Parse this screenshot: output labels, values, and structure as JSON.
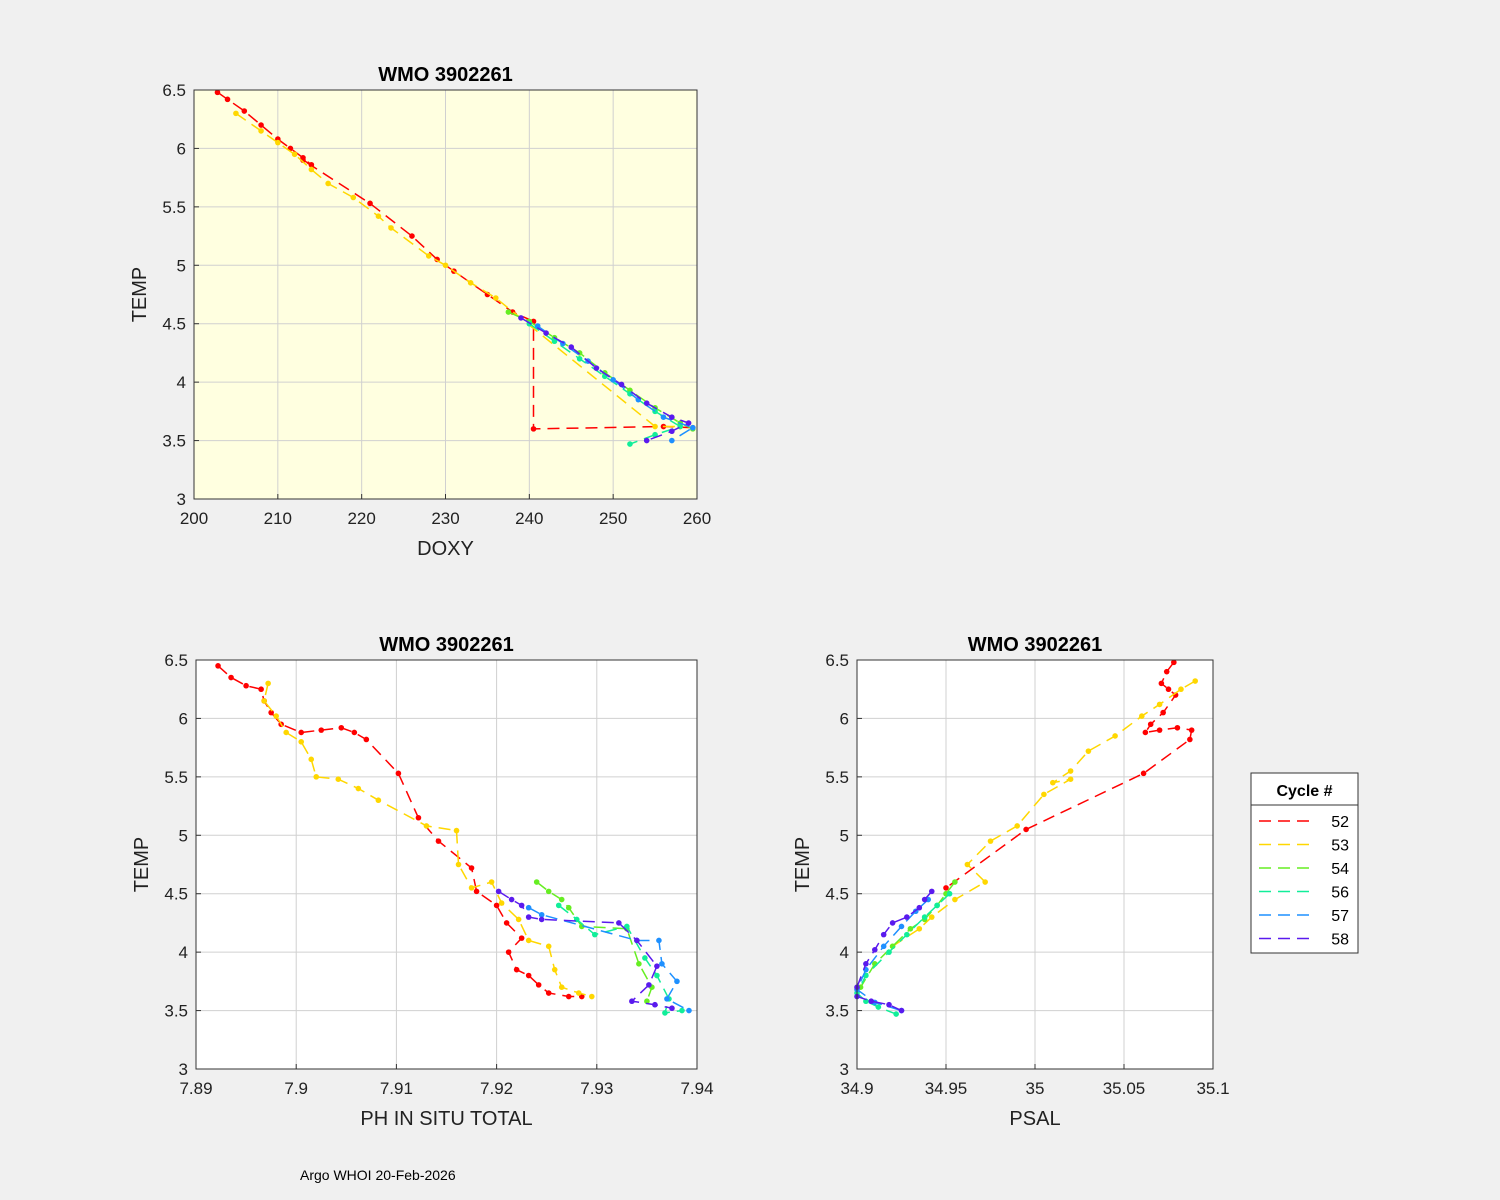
{
  "footer": "Argo WHOI 20-Feb-2026",
  "legend": {
    "title": "Cycle #",
    "entries": [
      {
        "label": "52",
        "color": "#ff0000"
      },
      {
        "label": "53",
        "color": "#ffd700"
      },
      {
        "label": "54",
        "color": "#66ee22"
      },
      {
        "label": "56",
        "color": "#11ee99"
      },
      {
        "label": "57",
        "color": "#1e90ff"
      },
      {
        "label": "58",
        "color": "#5a1aee"
      }
    ]
  },
  "chart_data": [
    {
      "id": "doxy",
      "type": "scatter",
      "title": "WMO 3902261",
      "xlabel": "DOXY",
      "ylabel": "TEMP",
      "xlim": [
        200,
        260
      ],
      "ylim": [
        3,
        6.5
      ],
      "xticks": [
        "200",
        "210",
        "220",
        "230",
        "240",
        "250",
        "260"
      ],
      "yticks": [
        "3",
        "3.5",
        "4",
        "4.5",
        "5",
        "5.5",
        "6",
        "6.5"
      ],
      "background": "#ffffe0",
      "series": [
        {
          "name": "52",
          "color": "#ff0000",
          "points": [
            [
              202.8,
              6.48
            ],
            [
              204,
              6.42
            ],
            [
              206,
              6.32
            ],
            [
              208,
              6.2
            ],
            [
              210,
              6.08
            ],
            [
              211.5,
              6.0
            ],
            [
              213,
              5.92
            ],
            [
              214,
              5.86
            ],
            [
              213,
              5.9
            ],
            [
              221,
              5.53
            ],
            [
              226,
              5.25
            ],
            [
              229,
              5.05
            ],
            [
              231,
              4.95
            ],
            [
              235,
              4.75
            ],
            [
              238,
              4.6
            ],
            [
              240.5,
              4.52
            ],
            [
              240.5,
              3.6
            ],
            [
              256,
              3.62
            ],
            [
              259.5,
              3.61
            ]
          ]
        },
        {
          "name": "53",
          "color": "#ffd700",
          "points": [
            [
              205,
              6.3
            ],
            [
              208,
              6.15
            ],
            [
              210,
              6.05
            ],
            [
              212,
              5.95
            ],
            [
              214,
              5.82
            ],
            [
              216,
              5.7
            ],
            [
              219,
              5.58
            ],
            [
              222,
              5.42
            ],
            [
              223.5,
              5.32
            ],
            [
              228,
              5.08
            ],
            [
              230,
              5.0
            ],
            [
              233,
              4.85
            ],
            [
              236,
              4.72
            ],
            [
              255,
              3.62
            ],
            [
              258,
              3.62
            ]
          ]
        },
        {
          "name": "54",
          "color": "#66ee22",
          "points": [
            [
              237.5,
              4.6
            ],
            [
              240,
              4.52
            ],
            [
              243,
              4.38
            ],
            [
              246,
              4.25
            ],
            [
              249,
              4.08
            ],
            [
              252,
              3.93
            ],
            [
              255,
              3.78
            ],
            [
              258,
              3.65
            ],
            [
              259.5,
              3.6
            ]
          ]
        },
        {
          "name": "56",
          "color": "#11ee99",
          "points": [
            [
              240,
              4.5
            ],
            [
              243,
              4.35
            ],
            [
              246,
              4.2
            ],
            [
              249,
              4.05
            ],
            [
              252,
              3.9
            ],
            [
              255,
              3.75
            ],
            [
              258,
              3.62
            ],
            [
              255,
              3.55
            ],
            [
              252,
              3.47
            ]
          ]
        },
        {
          "name": "57",
          "color": "#1e90ff",
          "points": [
            [
              241,
              4.48
            ],
            [
              244,
              4.33
            ],
            [
              247,
              4.18
            ],
            [
              250,
              4.02
            ],
            [
              253,
              3.85
            ],
            [
              256,
              3.7
            ],
            [
              259.5,
              3.61
            ],
            [
              257,
              3.5
            ]
          ]
        },
        {
          "name": "58",
          "color": "#5a1aee",
          "points": [
            [
              239,
              4.55
            ],
            [
              242,
              4.42
            ],
            [
              245,
              4.3
            ],
            [
              248,
              4.12
            ],
            [
              251,
              3.98
            ],
            [
              254,
              3.82
            ],
            [
              257,
              3.7
            ],
            [
              259,
              3.65
            ],
            [
              257,
              3.58
            ],
            [
              254,
              3.5
            ]
          ]
        }
      ]
    },
    {
      "id": "ph",
      "type": "scatter",
      "title": "WMO 3902261",
      "xlabel": "PH IN SITU TOTAL",
      "ylabel": "TEMP",
      "xlim": [
        7.89,
        7.94
      ],
      "ylim": [
        3,
        6.5
      ],
      "xticks": [
        "7.89",
        "7.9",
        "7.91",
        "7.92",
        "7.93",
        "7.94"
      ],
      "yticks": [
        "3",
        "3.5",
        "4",
        "4.5",
        "5",
        "5.5",
        "6",
        "6.5"
      ],
      "background": "#ffffff",
      "series": [
        {
          "name": "52",
          "color": "#ff0000",
          "points": [
            [
              7.8922,
              6.45
            ],
            [
              7.8935,
              6.35
            ],
            [
              7.895,
              6.28
            ],
            [
              7.8965,
              6.25
            ],
            [
              7.8968,
              6.15
            ],
            [
              7.8975,
              6.05
            ],
            [
              7.8985,
              5.95
            ],
            [
              7.9005,
              5.88
            ],
            [
              7.9025,
              5.9
            ],
            [
              7.9045,
              5.92
            ],
            [
              7.9058,
              5.88
            ],
            [
              7.907,
              5.82
            ],
            [
              7.9102,
              5.53
            ],
            [
              7.9122,
              5.15
            ],
            [
              7.9142,
              4.95
            ],
            [
              7.9175,
              4.72
            ],
            [
              7.918,
              4.52
            ],
            [
              7.92,
              4.4
            ],
            [
              7.921,
              4.25
            ],
            [
              7.9225,
              4.12
            ],
            [
              7.9212,
              4.0
            ],
            [
              7.922,
              3.85
            ],
            [
              7.9232,
              3.8
            ],
            [
              7.9242,
              3.72
            ],
            [
              7.9252,
              3.65
            ],
            [
              7.9272,
              3.62
            ],
            [
              7.9285,
              3.62
            ]
          ]
        },
        {
          "name": "53",
          "color": "#ffd700",
          "points": [
            [
              7.8972,
              6.3
            ],
            [
              7.8968,
              6.15
            ],
            [
              7.898,
              6.02
            ],
            [
              7.899,
              5.88
            ],
            [
              7.9005,
              5.8
            ],
            [
              7.9015,
              5.65
            ],
            [
              7.902,
              5.5
            ],
            [
              7.9042,
              5.48
            ],
            [
              7.9062,
              5.4
            ],
            [
              7.9082,
              5.3
            ],
            [
              7.913,
              5.08
            ],
            [
              7.916,
              5.04
            ],
            [
              7.9162,
              4.75
            ],
            [
              7.9175,
              4.55
            ],
            [
              7.9195,
              4.6
            ],
            [
              7.9205,
              4.42
            ],
            [
              7.9222,
              4.28
            ],
            [
              7.9232,
              4.1
            ],
            [
              7.9252,
              4.05
            ],
            [
              7.9258,
              3.85
            ],
            [
              7.9265,
              3.7
            ],
            [
              7.9282,
              3.65
            ],
            [
              7.9295,
              3.62
            ]
          ]
        },
        {
          "name": "54",
          "color": "#66ee22",
          "points": [
            [
              7.924,
              4.6
            ],
            [
              7.9252,
              4.52
            ],
            [
              7.9265,
              4.45
            ],
            [
              7.9272,
              4.38
            ],
            [
              7.9285,
              4.22
            ],
            [
              7.933,
              4.2
            ],
            [
              7.9342,
              3.9
            ],
            [
              7.9355,
              3.7
            ],
            [
              7.935,
              3.58
            ]
          ]
        },
        {
          "name": "56",
          "color": "#11ee99",
          "points": [
            [
              7.9262,
              4.4
            ],
            [
              7.928,
              4.28
            ],
            [
              7.9298,
              4.15
            ],
            [
              7.933,
              4.22
            ],
            [
              7.9348,
              3.95
            ],
            [
              7.936,
              3.8
            ],
            [
              7.9372,
              3.6
            ],
            [
              7.9368,
              3.48
            ],
            [
              7.9385,
              3.5
            ]
          ]
        },
        {
          "name": "57",
          "color": "#1e90ff",
          "points": [
            [
              7.9232,
              4.38
            ],
            [
              7.9245,
              4.32
            ],
            [
              7.934,
              4.1
            ],
            [
              7.9362,
              4.1
            ],
            [
              7.9365,
              3.9
            ],
            [
              7.938,
              3.75
            ],
            [
              7.937,
              3.6
            ],
            [
              7.9392,
              3.5
            ]
          ]
        },
        {
          "name": "58",
          "color": "#5a1aee",
          "points": [
            [
              7.9202,
              4.52
            ],
            [
              7.9215,
              4.45
            ],
            [
              7.9225,
              4.4
            ],
            [
              7.9232,
              4.3
            ],
            [
              7.9245,
              4.28
            ],
            [
              7.9322,
              4.25
            ],
            [
              7.934,
              4.1
            ],
            [
              7.936,
              3.88
            ],
            [
              7.9352,
              3.72
            ],
            [
              7.9335,
              3.58
            ],
            [
              7.9358,
              3.55
            ],
            [
              7.9375,
              3.52
            ]
          ]
        }
      ]
    },
    {
      "id": "psal",
      "type": "scatter",
      "title": "WMO 3902261",
      "xlabel": "PSAL",
      "ylabel": "TEMP",
      "xlim": [
        34.9,
        35.1
      ],
      "ylim": [
        3,
        6.5
      ],
      "xticks": [
        "34.9",
        "34.95",
        "35",
        "35.05",
        "35.1"
      ],
      "yticks": [
        "3",
        "3.5",
        "4",
        "4.5",
        "5",
        "5.5",
        "6",
        "6.5"
      ],
      "background": "#ffffff",
      "series": [
        {
          "name": "52",
          "color": "#ff0000",
          "points": [
            [
              35.078,
              6.48
            ],
            [
              35.074,
              6.4
            ],
            [
              35.071,
              6.3
            ],
            [
              35.075,
              6.25
            ],
            [
              35.079,
              6.2
            ],
            [
              35.072,
              6.05
            ],
            [
              35.065,
              5.95
            ],
            [
              35.062,
              5.88
            ],
            [
              35.07,
              5.9
            ],
            [
              35.08,
              5.92
            ],
            [
              35.088,
              5.9
            ],
            [
              35.087,
              5.82
            ],
            [
              35.061,
              5.53
            ],
            [
              34.995,
              5.05
            ],
            [
              34.95,
              4.55
            ]
          ]
        },
        {
          "name": "53",
          "color": "#ffd700",
          "points": [
            [
              35.09,
              6.32
            ],
            [
              35.082,
              6.25
            ],
            [
              35.07,
              6.12
            ],
            [
              35.06,
              6.02
            ],
            [
              35.045,
              5.85
            ],
            [
              35.03,
              5.72
            ],
            [
              35.02,
              5.55
            ],
            [
              35.01,
              5.45
            ],
            [
              35.02,
              5.48
            ],
            [
              35.005,
              5.35
            ],
            [
              34.99,
              5.08
            ],
            [
              34.975,
              4.95
            ],
            [
              34.962,
              4.75
            ],
            [
              34.972,
              4.6
            ],
            [
              34.955,
              4.45
            ],
            [
              34.942,
              4.3
            ],
            [
              34.935,
              4.2
            ],
            [
              34.92,
              4.05
            ]
          ]
        },
        {
          "name": "54",
          "color": "#66ee22",
          "points": [
            [
              34.955,
              4.6
            ],
            [
              34.95,
              4.5
            ],
            [
              34.945,
              4.4
            ],
            [
              34.938,
              4.28
            ],
            [
              34.93,
              4.2
            ],
            [
              34.92,
              4.05
            ],
            [
              34.91,
              3.9
            ],
            [
              34.902,
              3.7
            ]
          ]
        },
        {
          "name": "56",
          "color": "#11ee99",
          "points": [
            [
              34.952,
              4.5
            ],
            [
              34.945,
              4.4
            ],
            [
              34.938,
              4.3
            ],
            [
              34.928,
              4.15
            ],
            [
              34.918,
              4.0
            ],
            [
              34.905,
              3.8
            ],
            [
              34.9,
              3.65
            ],
            [
              34.905,
              3.58
            ],
            [
              34.912,
              3.53
            ],
            [
              34.922,
              3.47
            ]
          ]
        },
        {
          "name": "57",
          "color": "#1e90ff",
          "points": [
            [
              34.94,
              4.45
            ],
            [
              34.933,
              4.35
            ],
            [
              34.925,
              4.22
            ],
            [
              34.915,
              4.05
            ],
            [
              34.905,
              3.85
            ],
            [
              34.9,
              3.68
            ],
            [
              34.91,
              3.57
            ],
            [
              34.925,
              3.5
            ]
          ]
        },
        {
          "name": "58",
          "color": "#5a1aee",
          "points": [
            [
              34.942,
              4.52
            ],
            [
              34.938,
              4.45
            ],
            [
              34.935,
              4.38
            ],
            [
              34.928,
              4.3
            ],
            [
              34.92,
              4.25
            ],
            [
              34.915,
              4.15
            ],
            [
              34.91,
              4.02
            ],
            [
              34.905,
              3.9
            ],
            [
              34.9,
              3.7
            ],
            [
              34.9,
              3.62
            ],
            [
              34.908,
              3.58
            ],
            [
              34.918,
              3.55
            ],
            [
              34.925,
              3.5
            ]
          ]
        }
      ]
    }
  ]
}
